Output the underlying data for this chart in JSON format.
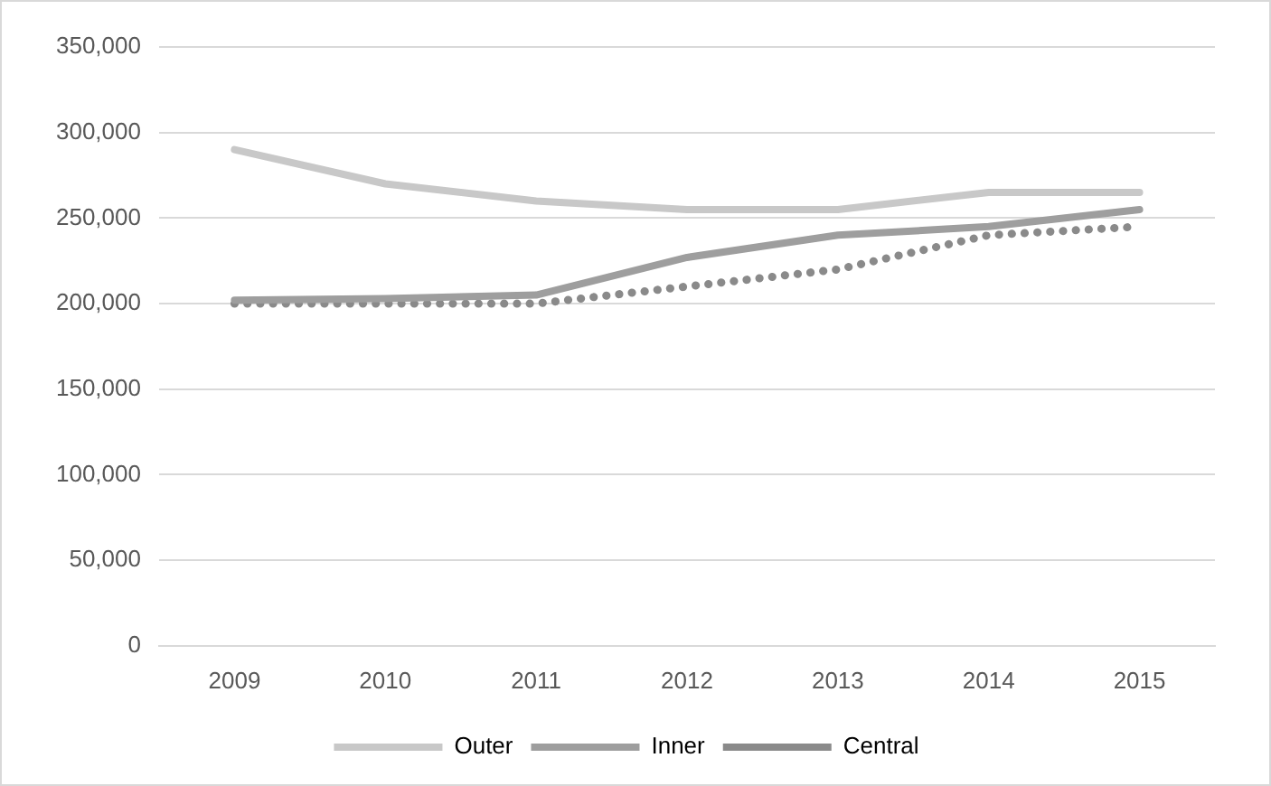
{
  "chart_data": {
    "type": "line",
    "categories": [
      "2009",
      "2010",
      "2011",
      "2012",
      "2013",
      "2014",
      "2015"
    ],
    "series": [
      {
        "name": "Outer",
        "color": "#c8c8c8",
        "values": [
          290000,
          270000,
          260000,
          255000,
          255000,
          265000,
          265000
        ]
      },
      {
        "name": "Inner",
        "color": "#9e9e9e",
        "values": [
          202000,
          203000,
          205000,
          227000,
          240000,
          245000,
          255000
        ]
      },
      {
        "name": "Central",
        "color": "#8a8a8a",
        "line_style": "dotted",
        "values": [
          200000,
          200000,
          200000,
          210000,
          220000,
          240000,
          245000
        ]
      }
    ],
    "ylim": [
      0,
      350000
    ],
    "yticks": [
      0,
      {
        "value": 50000,
        "label": "50,000"
      },
      {
        "value": 100000,
        "label": "100,000"
      },
      {
        "value": 150000,
        "label": "150,000"
      },
      {
        "value": 200000,
        "label": "200,000"
      },
      {
        "value": 250000,
        "label": "250,000"
      },
      {
        "value": 300000,
        "label": "300,000"
      },
      {
        "value": 350000,
        "label": "350,000"
      }
    ],
    "grid": "y",
    "legend": "bottom",
    "marker": "none",
    "line_style": "solid"
  }
}
